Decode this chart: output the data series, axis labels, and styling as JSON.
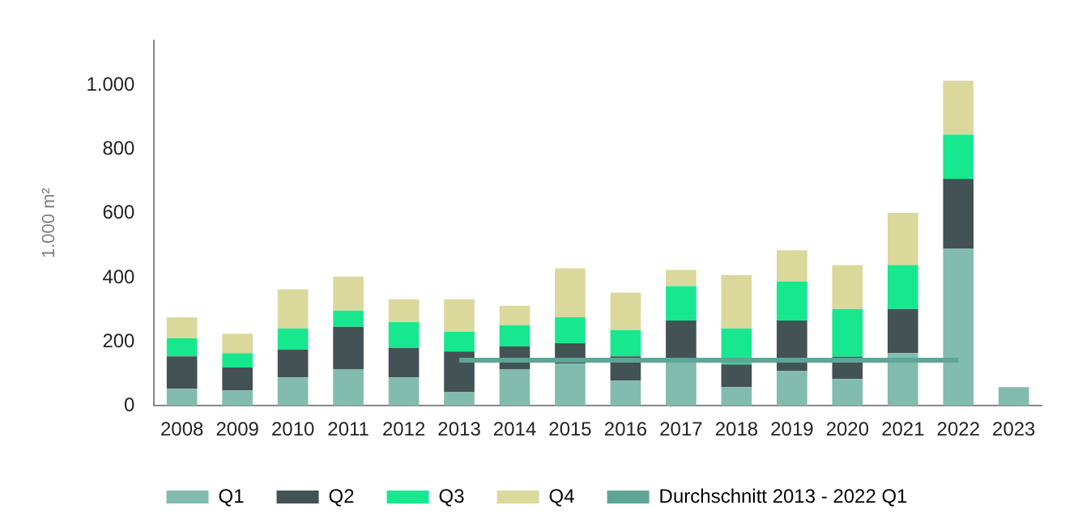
{
  "chart_data": {
    "type": "bar",
    "stacked": true,
    "ylabel": "1.000 m²",
    "categories": [
      "2008",
      "2009",
      "2010",
      "2011",
      "2012",
      "2013",
      "2014",
      "2015",
      "2016",
      "2017",
      "2018",
      "2019",
      "2020",
      "2021",
      "2022",
      "2023"
    ],
    "series": [
      {
        "name": "Q1",
        "color": "#82bcae",
        "values": [
          53,
          47,
          88,
          114,
          88,
          42,
          114,
          132,
          78,
          149,
          58,
          108,
          83,
          164,
          490,
          58
        ]
      },
      {
        "name": "Q2",
        "color": "#435254",
        "values": [
          101,
          72,
          87,
          132,
          92,
          127,
          71,
          63,
          76,
          117,
          71,
          158,
          70,
          138,
          218,
          null
        ]
      },
      {
        "name": "Q3",
        "color": "#17e88f",
        "values": [
          56,
          45,
          66,
          51,
          81,
          62,
          66,
          81,
          82,
          107,
          112,
          122,
          149,
          137,
          138,
          null
        ]
      },
      {
        "name": "Q4",
        "color": "#dbd89c",
        "values": [
          66,
          61,
          122,
          106,
          71,
          101,
          61,
          153,
          117,
          51,
          167,
          97,
          137,
          163,
          168,
          null
        ]
      },
      {
        "name": "Durchschnitt 2013 - 2022 Q1",
        "type": "line",
        "color": "#5fa595",
        "values": [
          null,
          null,
          null,
          null,
          null,
          142,
          142,
          142,
          142,
          142,
          142,
          142,
          142,
          142,
          142,
          null
        ]
      }
    ],
    "ylim": [
      0,
      1140
    ],
    "yticks": [
      0,
      200,
      400,
      600,
      800,
      {
        "value": 1000,
        "label": "1.000"
      }
    ],
    "grid": false,
    "legend": "bottom",
    "marker": "none"
  }
}
